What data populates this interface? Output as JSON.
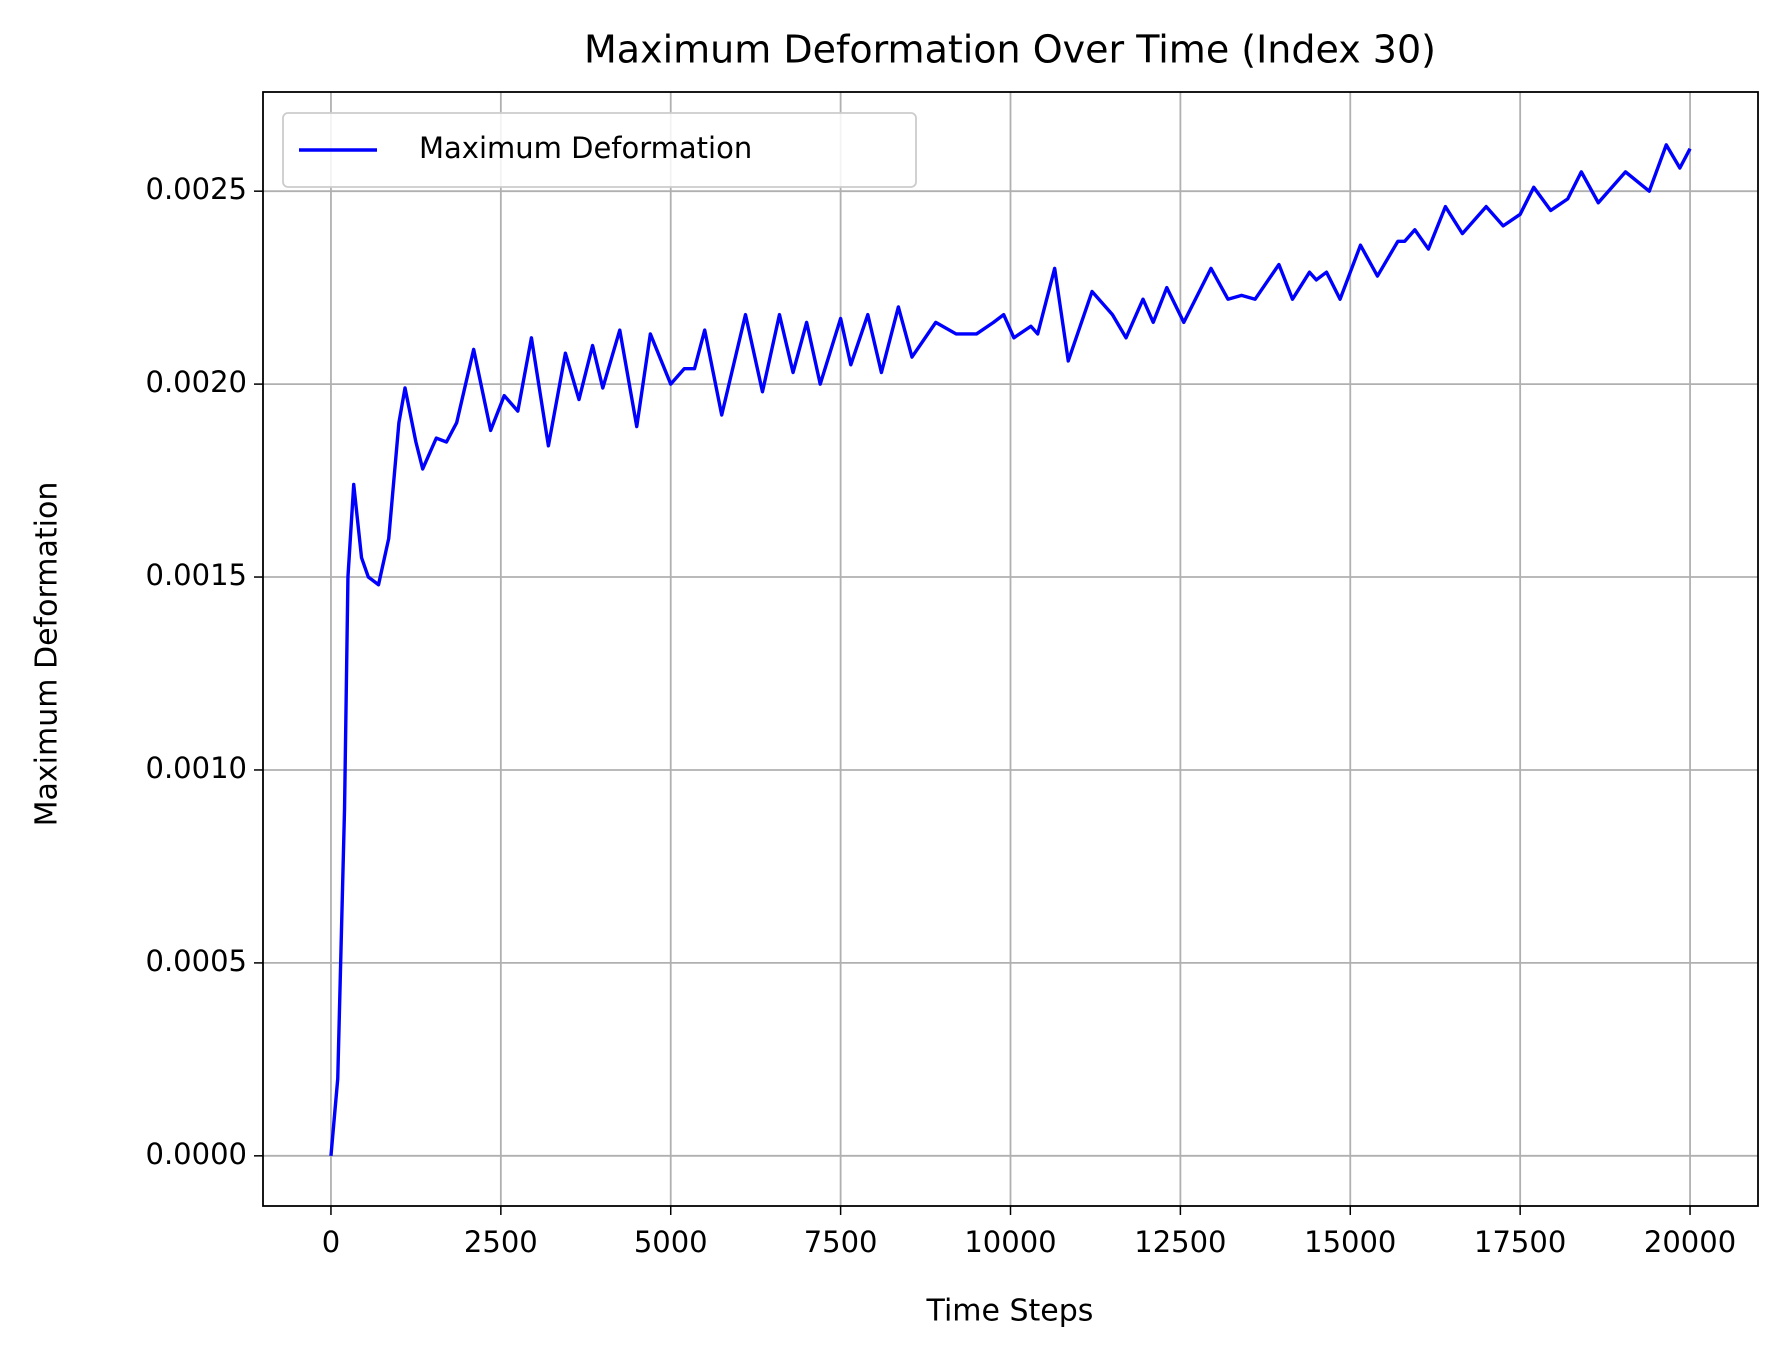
{
  "chart_data": {
    "type": "line",
    "title": "Maximum Deformation Over Time (Index 30)",
    "x_label": "Time Steps",
    "y_label": "Maximum Deformation",
    "xlim": [
      -1000,
      21000
    ],
    "ylim": [
      -0.00013,
      0.002757
    ],
    "xticks": [
      0,
      2500,
      5000,
      7500,
      10000,
      12500,
      15000,
      17500,
      20000
    ],
    "yticks": [
      {
        "value": 0,
        "label": "0.0000"
      },
      {
        "value": 0.0005,
        "label": "0.0005"
      },
      {
        "value": 0.001,
        "label": "0.0010"
      },
      {
        "value": 0.0015,
        "label": "0.0015"
      },
      {
        "value": 0.002,
        "label": "0.0020"
      },
      {
        "value": 0.0025,
        "label": "0.0025"
      }
    ],
    "grid": true,
    "legend": "upper left",
    "x": [
      0,
      100,
      200,
      250,
      335,
      450,
      550,
      700,
      850,
      1000,
      1090,
      1250,
      1350,
      1550,
      1700,
      1850,
      2100,
      2350,
      2550,
      2750,
      2950,
      3200,
      3450,
      3650,
      3850,
      4000,
      4250,
      4500,
      4700,
      5000,
      5200,
      5350,
      5500,
      5750,
      6100,
      6350,
      6600,
      6800,
      7000,
      7200,
      7500,
      7650,
      7900,
      8100,
      8350,
      8550,
      8900,
      9200,
      9500,
      9750,
      9900,
      10050,
      10300,
      10400,
      10650,
      10850,
      11200,
      11500,
      11700,
      11950,
      12100,
      12300,
      12550,
      12950,
      13200,
      13400,
      13600,
      13950,
      14150,
      14400,
      14500,
      14650,
      14850,
      15150,
      15400,
      15700,
      15800,
      15950,
      16150,
      16400,
      16650,
      17000,
      17250,
      17500,
      17700,
      17950,
      18200,
      18400,
      18650,
      19050,
      19400,
      19650,
      19850,
      20000
    ],
    "series": [
      {
        "name": "Maximum Deformation",
        "color": "#0000ff",
        "values": [
          0,
          0.0002,
          0.0009,
          0.0015,
          0.00174,
          0.00155,
          0.0015,
          0.00148,
          0.0016,
          0.0019,
          0.00199,
          0.00185,
          0.00178,
          0.00186,
          0.00185,
          0.0019,
          0.00209,
          0.00188,
          0.00197,
          0.00193,
          0.00212,
          0.00184,
          0.00208,
          0.00196,
          0.0021,
          0.00199,
          0.00214,
          0.00189,
          0.00213,
          0.002,
          0.00204,
          0.00204,
          0.00214,
          0.00192,
          0.00218,
          0.00198,
          0.00218,
          0.00203,
          0.00216,
          0.002,
          0.00217,
          0.00205,
          0.00218,
          0.00203,
          0.0022,
          0.00207,
          0.00216,
          0.00213,
          0.00213,
          0.00216,
          0.00218,
          0.00212,
          0.00215,
          0.00213,
          0.0023,
          0.00206,
          0.00224,
          0.00218,
          0.00212,
          0.00222,
          0.00216,
          0.00225,
          0.00216,
          0.0023,
          0.00222,
          0.00223,
          0.00222,
          0.00231,
          0.00222,
          0.00229,
          0.00227,
          0.00229,
          0.00222,
          0.00236,
          0.00228,
          0.00237,
          0.00237,
          0.0024,
          0.00235,
          0.00246,
          0.00239,
          0.00246,
          0.00241,
          0.00244,
          0.00251,
          0.00245,
          0.00248,
          0.00255,
          0.00247,
          0.00255,
          0.0025,
          0.00262,
          0.00256,
          0.00261
        ]
      }
    ]
  }
}
